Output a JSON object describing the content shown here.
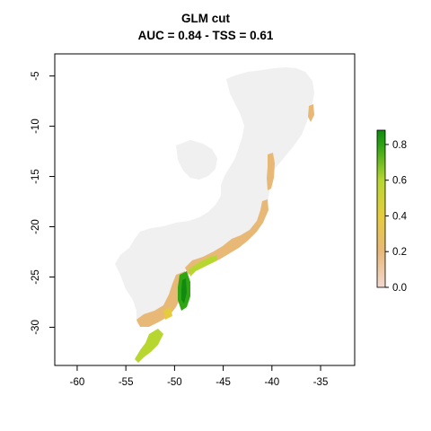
{
  "map": {
    "title_line1": "GLM cut",
    "title_line2": "AUC = 0.84 - TSS = 0.61",
    "x_ticks": [
      -60,
      -55,
      -50,
      -45,
      -40,
      -35
    ],
    "y_ticks": [
      -5,
      -10,
      -15,
      -20,
      -25,
      -30
    ],
    "x_range": [
      -62.3,
      -31.5
    ],
    "y_range": [
      -33.8,
      -2.8
    ],
    "background_region_color": "#f0f0f0",
    "colors": {
      "low": "#f2d8cf",
      "mid_low": "#e8b877",
      "mid": "#e6cc3d",
      "mid_high": "#b7d730",
      "high": "#2fa512",
      "top": "#108a10"
    }
  },
  "legend": {
    "ticks": [
      "0.0",
      "0.2",
      "0.4",
      "0.6",
      "0.8"
    ],
    "tick_values": [
      0.0,
      0.2,
      0.4,
      0.6,
      0.8
    ],
    "range": [
      0.0,
      0.88
    ]
  }
}
